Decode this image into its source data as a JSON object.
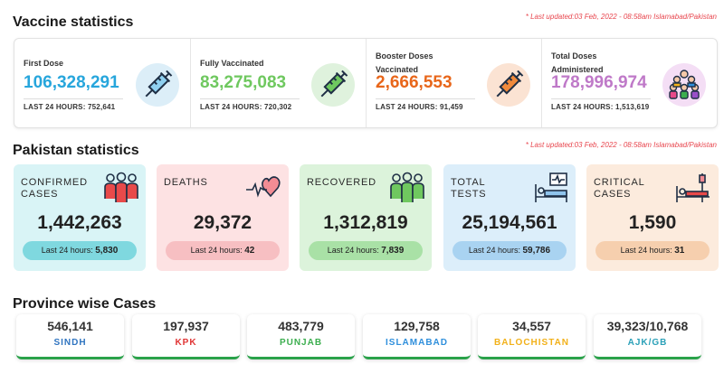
{
  "vaccine": {
    "title": "Vaccine statistics",
    "updated": "* Last updated:03 Feb, 2022 - 08:58am Islamabad/Pakistan",
    "stats": [
      {
        "label": "First Dose",
        "value": "106,328,291",
        "last24": "LAST 24 HOURS: 752,641",
        "color": "#27a6dc",
        "icon": "syringe-icon",
        "icon_bg": "#dceef8"
      },
      {
        "label": "Fully Vaccinated",
        "value": "83,275,083",
        "last24": "LAST 24 HOURS: 720,302",
        "color": "#6fc85f",
        "icon": "syringe-icon",
        "icon_bg": "#dff2dd"
      },
      {
        "label_lines": [
          "Booster Doses",
          "Vaccinated"
        ],
        "value": "2,666,553",
        "last24": "LAST 24 HOURS: 91,459",
        "color": "#e8661a",
        "icon": "syringe-icon",
        "icon_bg": "#fbe3d3"
      },
      {
        "label_lines": [
          "Total Doses",
          "Administered"
        ],
        "value": "178,996,974",
        "last24": "LAST 24 HOURS: 1,513,619",
        "color": "#bf79c8",
        "icon": "crowd-icon",
        "icon_bg": "#f4def5"
      }
    ]
  },
  "pakistan": {
    "title": "Pakistan statistics",
    "updated": "* Last updated:03 Feb, 2022 - 08:58am Islamabad/Pakistan",
    "last24_prefix": "Last 24 hours: ",
    "cards": [
      {
        "label_lines": [
          "CONFIRMED",
          "CASES"
        ],
        "value": "1,442,263",
        "last24": "5,830",
        "bg": "#d9f4f6",
        "pill": "#7fd8df",
        "icon": "people-icon"
      },
      {
        "label_lines": [
          "DEATHS"
        ],
        "value": "29,372",
        "last24": "42",
        "bg": "#fde2e3",
        "pill": "#f7bfc2",
        "icon": "heartbeat-icon"
      },
      {
        "label_lines": [
          "RECOVERED"
        ],
        "value": "1,312,819",
        "last24": "7,839",
        "bg": "#dcf3db",
        "pill": "#a9e1a6",
        "icon": "recovered-people-icon"
      },
      {
        "label_lines": [
          "TOTAL",
          "TESTS"
        ],
        "value": "25,194,561",
        "last24": "59,786",
        "bg": "#dceefa",
        "pill": "#a9d3f1",
        "icon": "hospital-bed-icon"
      },
      {
        "label_lines": [
          "CRITICAL",
          "CASES"
        ],
        "value": "1,590",
        "last24": "31",
        "bg": "#fcebdd",
        "pill": "#f6cfae",
        "icon": "icu-bed-icon"
      }
    ]
  },
  "province": {
    "title": "Province wise Cases",
    "items": [
      {
        "value": "546,141",
        "name": "SINDH",
        "color": "#2f74c0"
      },
      {
        "value": "197,937",
        "name": "KPK",
        "color": "#e03434"
      },
      {
        "value": "483,779",
        "name": "PUNJAB",
        "color": "#3cae4f"
      },
      {
        "value": "129,758",
        "name": "ISLAMABAD",
        "color": "#2f8fdc"
      },
      {
        "value": "34,557",
        "name": "BALOCHISTAN",
        "color": "#f2b11a"
      },
      {
        "value": "39,323/10,768",
        "name": "AJK/GB",
        "color": "#2aa0b8"
      }
    ]
  }
}
